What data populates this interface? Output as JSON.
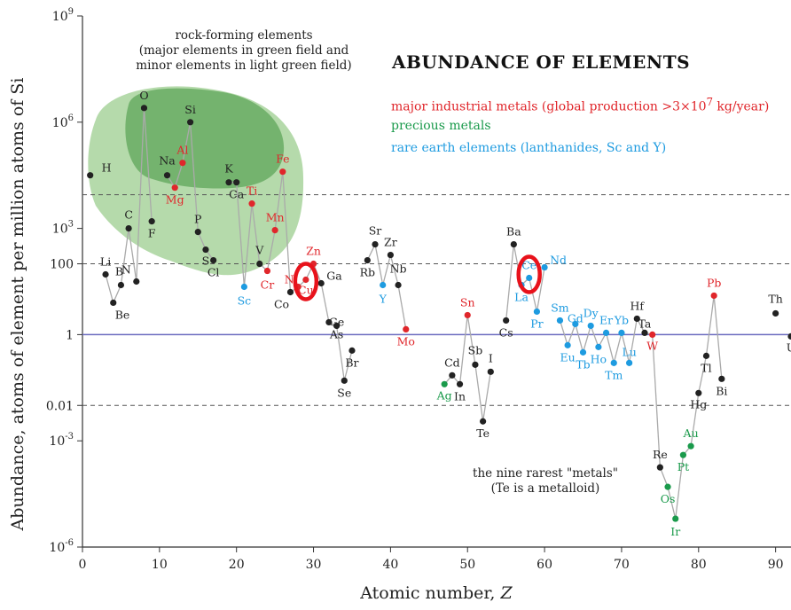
{
  "chart_data": {
    "type": "scatter",
    "title": "ABUNDANCE OF  ELEMENTS",
    "xlabel": "Atomic number, Z",
    "ylabel": "Abundance, atoms of element per million atoms of Si",
    "xlim": [
      0,
      92
    ],
    "ylim_log10": [
      -6,
      9
    ],
    "x_ticks": [
      "0",
      "10",
      "20",
      "30",
      "40",
      "50",
      "60",
      "70",
      "80",
      "90"
    ],
    "y_ticks": [
      {
        "base": "10",
        "exp": "9",
        "log": 9
      },
      {
        "base": "10",
        "exp": "6",
        "log": 6
      },
      {
        "base": "10",
        "exp": "3",
        "log": 3
      },
      {
        "base": "100",
        "exp": "",
        "log": 2
      },
      {
        "base": "1",
        "exp": "",
        "log": 0
      },
      {
        "base": "0.01",
        "exp": "",
        "log": -2
      },
      {
        "base": "10",
        "exp": "-3",
        "log": -3
      },
      {
        "base": "10",
        "exp": "-6",
        "log": -6
      }
    ],
    "reference_lines_log10": [
      3.95,
      2,
      0,
      -2
    ],
    "legend": {
      "industrial": {
        "text": "major industrial metals (global production >3×10",
        "sup": "7",
        "tail": " kg/year)",
        "color": "#e0262b"
      },
      "precious": {
        "text": "precious metals",
        "color": "#1a9a4b"
      },
      "rare_earth": {
        "text": "rare earth elements (lanthanides, Sc and Y)",
        "color": "#1e9be0"
      }
    },
    "annotations": {
      "rock_forming": [
        "rock-forming elements",
        "(major elements in green field and",
        "minor elements in light green field)"
      ],
      "rarest": [
        "the nine rarest \"metals\"",
        "(Te is a metalloid)"
      ]
    },
    "colors": {
      "rock": "#222222",
      "industrial": "#e0262b",
      "precious": "#1a9a4b",
      "rare_earth": "#1e9be0",
      "line": "#aaaaaa",
      "major_field": "#5fa55a",
      "minor_field": "#a8d39c",
      "unit_line": "#6b6bbf",
      "highlight": "#e8121b"
    },
    "highlighted": [
      "Cu",
      "Ce"
    ],
    "elements": [
      {
        "z": 1,
        "s": "H",
        "a": 4.5,
        "c": "rock"
      },
      {
        "z": 3,
        "s": "Li",
        "a": 1.7,
        "c": "rock"
      },
      {
        "z": 4,
        "s": "Be",
        "a": 0.9,
        "c": "rock"
      },
      {
        "z": 5,
        "s": "B",
        "a": 1.4,
        "c": "rock"
      },
      {
        "z": 6,
        "s": "C",
        "a": 3.0,
        "c": "rock"
      },
      {
        "z": 7,
        "s": "N",
        "a": 1.5,
        "c": "rock"
      },
      {
        "z": 8,
        "s": "O",
        "a": 6.4,
        "c": "rock"
      },
      {
        "z": 9,
        "s": "F",
        "a": 3.2,
        "c": "rock"
      },
      {
        "z": 11,
        "s": "Na",
        "a": 4.5,
        "c": "rock"
      },
      {
        "z": 12,
        "s": "Mg",
        "a": 4.15,
        "c": "industrial"
      },
      {
        "z": 13,
        "s": "Al",
        "a": 4.85,
        "c": "industrial"
      },
      {
        "z": 14,
        "s": "Si",
        "a": 6.0,
        "c": "rock"
      },
      {
        "z": 15,
        "s": "P",
        "a": 2.9,
        "c": "rock"
      },
      {
        "z": 16,
        "s": "S",
        "a": 2.4,
        "c": "rock"
      },
      {
        "z": 17,
        "s": "Cl",
        "a": 2.1,
        "c": "rock"
      },
      {
        "z": 19,
        "s": "K",
        "a": 4.3,
        "c": "rock"
      },
      {
        "z": 20,
        "s": "Ca",
        "a": 4.3,
        "c": "rock"
      },
      {
        "z": 21,
        "s": "Sc",
        "a": 1.35,
        "c": "rare_earth"
      },
      {
        "z": 22,
        "s": "Ti",
        "a": 3.7,
        "c": "industrial"
      },
      {
        "z": 23,
        "s": "V",
        "a": 2.0,
        "c": "rock"
      },
      {
        "z": 24,
        "s": "Cr",
        "a": 1.8,
        "c": "industrial"
      },
      {
        "z": 25,
        "s": "Mn",
        "a": 2.95,
        "c": "industrial"
      },
      {
        "z": 26,
        "s": "Fe",
        "a": 4.6,
        "c": "industrial"
      },
      {
        "z": 27,
        "s": "Co",
        "a": 1.2,
        "c": "rock"
      },
      {
        "z": 28,
        "s": "Ni",
        "a": 1.35,
        "c": "industrial"
      },
      {
        "z": 29,
        "s": "Cu",
        "a": 1.55,
        "c": "industrial"
      },
      {
        "z": 30,
        "s": "Zn",
        "a": 2.0,
        "c": "industrial"
      },
      {
        "z": 31,
        "s": "Ga",
        "a": 1.45,
        "c": "rock"
      },
      {
        "z": 32,
        "s": "Ge",
        "a": 0.35,
        "c": "rock"
      },
      {
        "z": 33,
        "s": "As",
        "a": 0.25,
        "c": "rock"
      },
      {
        "z": 34,
        "s": "Se",
        "a": -1.3,
        "c": "rock"
      },
      {
        "z": 35,
        "s": "Br",
        "a": -0.45,
        "c": "rock"
      },
      {
        "z": 37,
        "s": "Rb",
        "a": 2.1,
        "c": "rock"
      },
      {
        "z": 38,
        "s": "Sr",
        "a": 2.55,
        "c": "rock"
      },
      {
        "z": 39,
        "s": "Y",
        "a": 1.4,
        "c": "rare_earth"
      },
      {
        "z": 40,
        "s": "Zr",
        "a": 2.25,
        "c": "rock"
      },
      {
        "z": 41,
        "s": "Nb",
        "a": 1.4,
        "c": "rock"
      },
      {
        "z": 42,
        "s": "Mo",
        "a": 0.15,
        "c": "industrial"
      },
      {
        "z": 47,
        "s": "Ag",
        "a": -1.4,
        "c": "precious"
      },
      {
        "z": 48,
        "s": "Cd",
        "a": -1.15,
        "c": "rock"
      },
      {
        "z": 49,
        "s": "In",
        "a": -1.4,
        "c": "rock"
      },
      {
        "z": 50,
        "s": "Sn",
        "a": 0.55,
        "c": "industrial"
      },
      {
        "z": 51,
        "s": "Sb",
        "a": -0.85,
        "c": "rock"
      },
      {
        "z": 52,
        "s": "Te",
        "a": -2.45,
        "c": "rock"
      },
      {
        "z": 53,
        "s": "I",
        "a": -1.05,
        "c": "rock"
      },
      {
        "z": 55,
        "s": "Cs",
        "a": 0.4,
        "c": "rock"
      },
      {
        "z": 56,
        "s": "Ba",
        "a": 2.55,
        "c": "rock"
      },
      {
        "z": 57,
        "s": "La",
        "a": 1.4,
        "c": "rare_earth"
      },
      {
        "z": 58,
        "s": "Ce",
        "a": 1.6,
        "c": "rare_earth"
      },
      {
        "z": 59,
        "s": "Pr",
        "a": 0.65,
        "c": "rare_earth"
      },
      {
        "z": 60,
        "s": "Nd",
        "a": 1.9,
        "c": "rare_earth"
      },
      {
        "z": 62,
        "s": "Sm",
        "a": 0.4,
        "c": "rare_earth"
      },
      {
        "z": 63,
        "s": "Eu",
        "a": -0.3,
        "c": "rare_earth"
      },
      {
        "z": 64,
        "s": "Gd",
        "a": 0.3,
        "c": "rare_earth"
      },
      {
        "z": 65,
        "s": "Tb",
        "a": -0.5,
        "c": "rare_earth"
      },
      {
        "z": 66,
        "s": "Dy",
        "a": 0.25,
        "c": "rare_earth"
      },
      {
        "z": 67,
        "s": "Ho",
        "a": -0.35,
        "c": "rare_earth"
      },
      {
        "z": 68,
        "s": "Er",
        "a": 0.05,
        "c": "rare_earth"
      },
      {
        "z": 69,
        "s": "Tm",
        "a": -0.8,
        "c": "rare_earth"
      },
      {
        "z": 70,
        "s": "Yb",
        "a": 0.05,
        "c": "rare_earth"
      },
      {
        "z": 71,
        "s": "Lu",
        "a": -0.8,
        "c": "rare_earth"
      },
      {
        "z": 72,
        "s": "Hf",
        "a": 0.45,
        "c": "rock"
      },
      {
        "z": 73,
        "s": "Ta",
        "a": 0.05,
        "c": "rock"
      },
      {
        "z": 74,
        "s": "W",
        "a": 0.0,
        "c": "industrial"
      },
      {
        "z": 75,
        "s": "Re",
        "a": -3.75,
        "c": "rock"
      },
      {
        "z": 76,
        "s": "Os",
        "a": -4.3,
        "c": "precious"
      },
      {
        "z": 77,
        "s": "Ir",
        "a": -5.2,
        "c": "precious"
      },
      {
        "z": 78,
        "s": "Pt",
        "a": -3.4,
        "c": "precious"
      },
      {
        "z": 79,
        "s": "Au",
        "a": -3.15,
        "c": "precious"
      },
      {
        "z": 80,
        "s": "Hg",
        "a": -1.65,
        "c": "rock"
      },
      {
        "z": 81,
        "s": "Tl",
        "a": -0.6,
        "c": "rock"
      },
      {
        "z": 82,
        "s": "Pb",
        "a": 1.1,
        "c": "industrial"
      },
      {
        "z": 83,
        "s": "Bi",
        "a": -1.25,
        "c": "rock"
      },
      {
        "z": 90,
        "s": "Th",
        "a": 0.6,
        "c": "rock"
      },
      {
        "z": 92,
        "s": "U",
        "a": -0.05,
        "c": "rock"
      }
    ]
  }
}
